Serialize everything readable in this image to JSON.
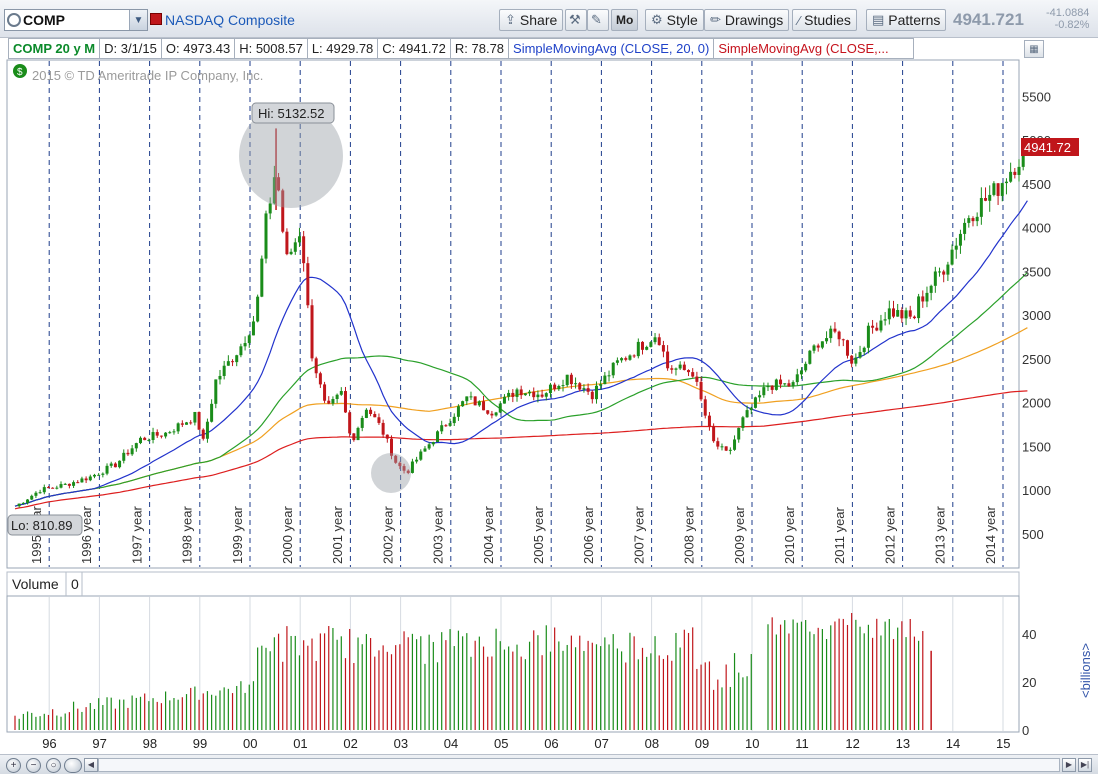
{
  "toolbar": {
    "symbol": "COMP",
    "symbol_name": "NASDAQ Composite",
    "share_label": "Share",
    "mo_label": "Mo",
    "style_label": "Style",
    "drawings_label": "Drawings",
    "studies_label": "Studies",
    "patterns_label": "Patterns",
    "last_price": "4941.721",
    "change_abs": "-41.0884",
    "change_pct": "-0.82%"
  },
  "info": {
    "aggregation": "COMP 20 y M",
    "date": "D: 3/1/15",
    "open": "O: 4973.43",
    "high": "H: 5008.57",
    "low": "L: 4929.78",
    "close": "C: 4941.72",
    "range": "R: 78.78",
    "sma1": "SimpleMovingAvg (CLOSE, 20, 0)",
    "sma2": "SimpleMovingAvg (CLOSE,..."
  },
  "chart": {
    "copyright": "2015 © TD Ameritrade IP Company, Inc.",
    "hi_label": "Hi: 5132.52",
    "lo_label": "Lo: 810.89",
    "last_label": "4941.72",
    "volume_label": "Volume",
    "volume_value": "0",
    "volume_unit": "<billions>",
    "colors": {
      "up": "#1a8c1a",
      "down": "#c0161b",
      "sma20": "#2233cc",
      "sma_green": "#2aa02a",
      "sma_orange": "#f0a020",
      "sma_red": "#dd1f1f"
    }
  },
  "chart_data": {
    "type": "candlestick",
    "price_axis_ticks": [
      500,
      1000,
      1500,
      2000,
      2500,
      3000,
      3500,
      4000,
      4500,
      5000,
      5500
    ],
    "year_labels": [
      "1995 year",
      "1996 year",
      "1997 year",
      "1998 year",
      "1999 year",
      "2000 year",
      "2001 year",
      "2002 year",
      "2003 year",
      "2004 year",
      "2005 year",
      "2006 year",
      "2007 year",
      "2008 year",
      "2009 year",
      "2010 year",
      "2011 year",
      "2012 year",
      "2013 year",
      "2014 year"
    ],
    "x_ticks": [
      "96",
      "97",
      "98",
      "99",
      "00",
      "01",
      "02",
      "03",
      "04",
      "05",
      "06",
      "07",
      "08",
      "09",
      "10",
      "11",
      "12",
      "13",
      "14",
      "15"
    ],
    "volume_ticks": [
      0,
      20,
      40
    ],
    "anchors": [
      {
        "t": 1995.0,
        "v": 810
      },
      {
        "t": 1995.5,
        "v": 1000
      },
      {
        "t": 1996.0,
        "v": 1060
      },
      {
        "t": 1996.5,
        "v": 1150
      },
      {
        "t": 1997.0,
        "v": 1290
      },
      {
        "t": 1997.5,
        "v": 1580
      },
      {
        "t": 1998.0,
        "v": 1650
      },
      {
        "t": 1998.6,
        "v": 1850
      },
      {
        "t": 1998.75,
        "v": 1550
      },
      {
        "t": 1999.0,
        "v": 2250
      },
      {
        "t": 1999.5,
        "v": 2650
      },
      {
        "t": 1999.8,
        "v": 3000
      },
      {
        "t": 2000.0,
        "v": 4050
      },
      {
        "t": 2000.2,
        "v": 4700
      },
      {
        "t": 2000.4,
        "v": 3600
      },
      {
        "t": 2000.7,
        "v": 4000
      },
      {
        "t": 2000.9,
        "v": 2600
      },
      {
        "t": 2001.2,
        "v": 1900
      },
      {
        "t": 2001.5,
        "v": 2100
      },
      {
        "t": 2001.7,
        "v": 1550
      },
      {
        "t": 2002.0,
        "v": 1950
      },
      {
        "t": 2002.3,
        "v": 1700
      },
      {
        "t": 2002.6,
        "v": 1300
      },
      {
        "t": 2002.8,
        "v": 1200
      },
      {
        "t": 2003.0,
        "v": 1350
      },
      {
        "t": 2003.5,
        "v": 1700
      },
      {
        "t": 2004.0,
        "v": 2050
      },
      {
        "t": 2004.5,
        "v": 1900
      },
      {
        "t": 2005.0,
        "v": 2150
      },
      {
        "t": 2005.5,
        "v": 2100
      },
      {
        "t": 2006.0,
        "v": 2300
      },
      {
        "t": 2006.5,
        "v": 2100
      },
      {
        "t": 2007.0,
        "v": 2450
      },
      {
        "t": 2007.8,
        "v": 2800
      },
      {
        "t": 2008.0,
        "v": 2400
      },
      {
        "t": 2008.5,
        "v": 2350
      },
      {
        "t": 2008.9,
        "v": 1550
      },
      {
        "t": 2009.2,
        "v": 1400
      },
      {
        "t": 2009.5,
        "v": 1800
      },
      {
        "t": 2010.0,
        "v": 2200
      },
      {
        "t": 2010.5,
        "v": 2200
      },
      {
        "t": 2011.0,
        "v": 2700
      },
      {
        "t": 2011.4,
        "v": 2800
      },
      {
        "t": 2011.7,
        "v": 2450
      },
      {
        "t": 2012.0,
        "v": 2800
      },
      {
        "t": 2012.4,
        "v": 3050
      },
      {
        "t": 2012.9,
        "v": 2950
      },
      {
        "t": 2013.0,
        "v": 3150
      },
      {
        "t": 2013.5,
        "v": 3550
      },
      {
        "t": 2014.0,
        "v": 4150
      },
      {
        "t": 2014.5,
        "v": 4400
      },
      {
        "t": 2015.0,
        "v": 4800
      },
      {
        "t": 2015.17,
        "v": 4950
      }
    ],
    "hi": 5132.52,
    "lo": 810.89,
    "last": 4941.72
  }
}
